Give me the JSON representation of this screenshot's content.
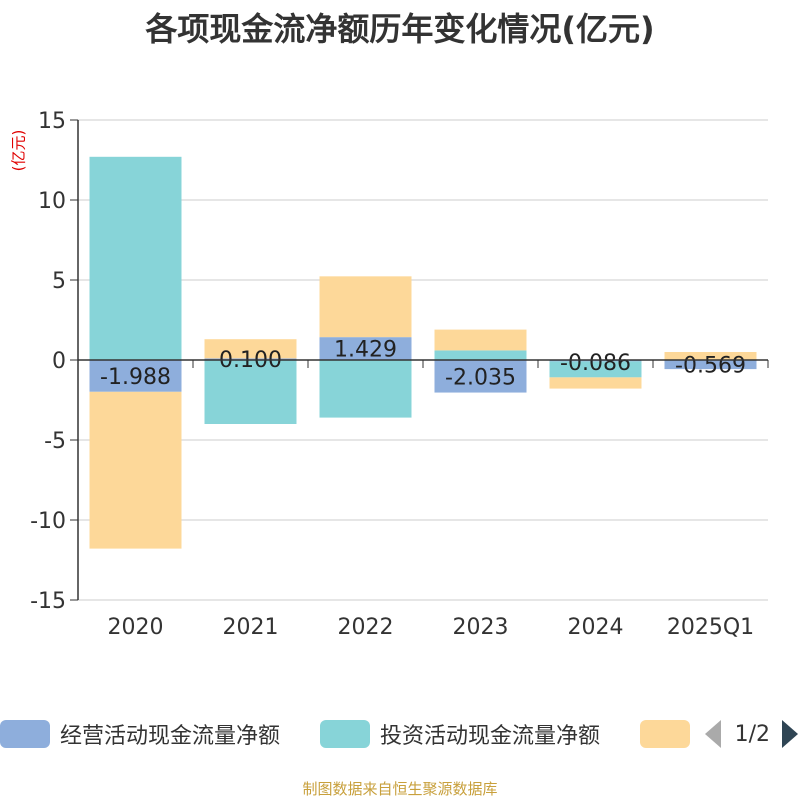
{
  "title": "各项现金流净额历年变化情况(亿元)",
  "unit_label": "(亿元)",
  "source": "制图数据来自恒生聚源数据库",
  "legend": {
    "items": [
      {
        "label": "经营活动现金流量净额",
        "color": "#8eaedc"
      },
      {
        "label": "投资活动现金流量净额",
        "color": "#87d4d8"
      },
      {
        "label": "",
        "color": "#fdd899"
      }
    ],
    "page": "1/2"
  },
  "chart_data": {
    "type": "bar",
    "stacked": true,
    "categories": [
      "2020",
      "2021",
      "2022",
      "2023",
      "2024",
      "2025Q1"
    ],
    "series": [
      {
        "name": "经营活动现金流量净额",
        "color": "#8eaedc",
        "values": [
          -1.988,
          0.1,
          1.429,
          -2.035,
          -0.086,
          -0.569
        ],
        "labels": [
          "-1.988",
          "0.100",
          "1.429",
          "-2.035",
          "-0.086",
          "-0.569"
        ]
      },
      {
        "name": "投资活动现金流量净额",
        "color": "#87d4d8",
        "values": [
          12.7,
          -4.0,
          -3.6,
          0.6,
          -1.0,
          0.0
        ]
      },
      {
        "name": "",
        "color": "#fdd899",
        "values": [
          -9.8,
          1.2,
          3.8,
          1.3,
          -0.7,
          0.5
        ]
      }
    ],
    "ylim": [
      -15,
      15
    ],
    "yticks": [
      15,
      10,
      5,
      0,
      -5,
      -10,
      -15
    ],
    "ytick_labels": [
      "15",
      "10",
      "5",
      "0",
      "-5",
      "-10",
      "-15"
    ],
    "grid": true
  }
}
